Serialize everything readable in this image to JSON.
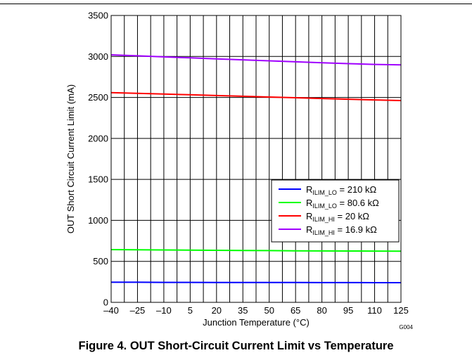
{
  "figure": {
    "caption": "Figure 4. OUT Short-Circuit Current Limit vs Temperature",
    "code": "G004"
  },
  "chart_data": {
    "type": "line",
    "title": "",
    "xlabel": "Junction Temperature (°C)",
    "ylabel": "OUT Short Circuit Current Limit (mA)",
    "xlim": [
      -40,
      125
    ],
    "ylim": [
      0,
      3500
    ],
    "x_major_ticks": [
      -40,
      -25,
      -10,
      5,
      20,
      35,
      50,
      65,
      80,
      95,
      110,
      125
    ],
    "x_tick_labels": [
      "–40",
      "–25",
      "–10",
      "5",
      "20",
      "35",
      "50",
      "65",
      "80",
      "95",
      "110",
      "125"
    ],
    "x_gridlines": [
      -40,
      -32.5,
      -25,
      -17.5,
      -10,
      -2.5,
      5,
      12.5,
      20,
      27.5,
      35,
      42.5,
      50,
      57.5,
      65,
      72.5,
      80,
      87.5,
      95,
      102.5,
      110,
      117.5,
      125
    ],
    "y_major_ticks": [
      0,
      500,
      1000,
      1500,
      2000,
      2500,
      3000,
      3500
    ],
    "y_tick_labels": [
      "0",
      "500",
      "1000",
      "1500",
      "2000",
      "2500",
      "3000",
      "3500"
    ],
    "grid": true,
    "legend_position": "lower-right",
    "series": [
      {
        "name": "R_ILIM_LO = 210 kΩ",
        "label_main": "R",
        "label_sub": "ILIM_LO",
        "label_value": " = 210 kΩ",
        "color": "#0000ff",
        "x": [
          -40,
          -25,
          -10,
          5,
          20,
          35,
          50,
          65,
          80,
          95,
          110,
          125
        ],
        "y": [
          245,
          245,
          244,
          244,
          243,
          243,
          242,
          242,
          241,
          241,
          240,
          240
        ]
      },
      {
        "name": "R_ILIM_LO = 80.6 kΩ",
        "label_main": "R",
        "label_sub": "ILIM_LO",
        "label_value": " = 80.6 kΩ",
        "color": "#00ff00",
        "x": [
          -40,
          -25,
          -10,
          5,
          20,
          35,
          50,
          65,
          80,
          95,
          110,
          125
        ],
        "y": [
          643,
          641,
          639,
          637,
          635,
          633,
          631,
          629,
          627,
          626,
          625,
          624
        ]
      },
      {
        "name": "R_ILIM_HI = 20 kΩ",
        "label_main": "R",
        "label_sub": "ILIM_HI",
        "label_value": " = 20 kΩ",
        "color": "#ff0000",
        "x": [
          -40,
          -25,
          -10,
          5,
          20,
          35,
          50,
          65,
          80,
          95,
          110,
          125
        ],
        "y": [
          2558,
          2550,
          2541,
          2532,
          2523,
          2514,
          2505,
          2496,
          2487,
          2478,
          2470,
          2462
        ]
      },
      {
        "name": "R_ILIM_HI = 16.9 kΩ",
        "label_main": "R",
        "label_sub": "ILIM_HI",
        "label_value": " = 16.9 kΩ",
        "color": "#a000ff",
        "x": [
          -40,
          -25,
          -10,
          5,
          20,
          35,
          50,
          65,
          80,
          95,
          110,
          125
        ],
        "y": [
          3020,
          3008,
          2995,
          2983,
          2971,
          2959,
          2947,
          2935,
          2923,
          2912,
          2903,
          2898
        ]
      }
    ]
  }
}
